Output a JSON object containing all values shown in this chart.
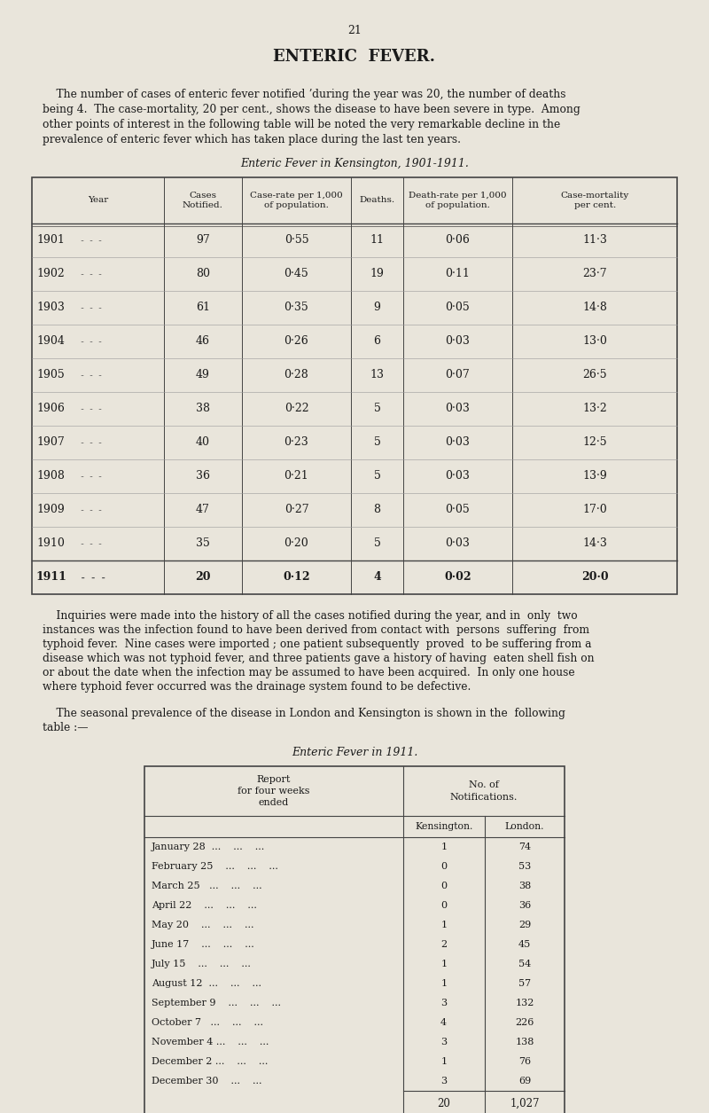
{
  "page_number": "21",
  "title": "ENTERIC  FEVER.",
  "bg_color": "#e9e5db",
  "para1_lines": [
    "    The number of cases of enteric fever notified ʼduring the year was 20, the number of deaths",
    "being 4.  The case-mortality, 20 per cent., shows the disease to have been severe in type.  Among",
    "other points of interest in the following table will be noted the very remarkable decline in the",
    "prevalence of enteric fever which has taken place during the last ten years."
  ],
  "table1_title": "Enteric Fever in Kensington, 1901-1911.",
  "table1_col_headers": [
    "Year",
    "Cases\nNotified.",
    "Case-rate per 1,000\nof population.",
    "Deaths.",
    "Death-rate per 1,000\nof population.",
    "Case-mortality\nper cent."
  ],
  "table1_data": [
    [
      "1901",
      " -  -  -",
      "97",
      "0·55",
      "11",
      "0·06",
      "11·3"
    ],
    [
      "1902",
      " -  -  -",
      "80",
      "0·45",
      "19",
      "0·11",
      "23·7"
    ],
    [
      "1903",
      " -  -  -",
      "61",
      "0·35",
      "9",
      "0·05",
      "14·8"
    ],
    [
      "1904",
      " -  -  -",
      "46",
      "0·26",
      "6",
      "0·03",
      "13·0"
    ],
    [
      "1905",
      " -  -  -",
      "49",
      "0·28",
      "13",
      "0·07",
      "26·5"
    ],
    [
      "1906",
      " -  -  -",
      "38",
      "0·22",
      "5",
      "0·03",
      "13·2"
    ],
    [
      "1907",
      " -  -  -",
      "40",
      "0·23",
      "5",
      "0·03",
      "12·5"
    ],
    [
      "1908",
      " -  -  -",
      "36",
      "0·21",
      "5",
      "0·03",
      "13·9"
    ],
    [
      "1909",
      " -  -  -",
      "47",
      "0·27",
      "8",
      "0·05",
      "17·0"
    ],
    [
      "1910",
      " -  -  -",
      "35",
      "0·20",
      "5",
      "0·03",
      "14·3"
    ],
    [
      "1911",
      " -  -  -",
      "20",
      "0·12",
      "4",
      "0·02",
      "20·0"
    ]
  ],
  "para2_lines": [
    "    Inquiries were made into the history of all the cases notified during the year, and in  only  two",
    "instances was the infection found to have been derived from contact with  persons  suffering  from",
    "typhoid fever.  Nine cases were imported ; one patient subsequently  proved  to be suffering from a",
    "disease which was not typhoid fever, and three patients gave a history of having  eaten shell fish on",
    "or about the date when the infection may be assumed to have been acquired.  In only one house",
    "where typhoid fever occurred was the drainage system found to be defective."
  ],
  "para3_lines": [
    "    The seasonal prevalence of the disease in London and Kensington is shown in the  following",
    "table :—"
  ],
  "table2_title": "Enteric Fever in 1911.",
  "table2_data": [
    [
      "January 28  ...    ...    ...",
      "1",
      "74"
    ],
    [
      "February 25    ...    ...    ...",
      "0",
      "53"
    ],
    [
      "March 25   ...    ...    ...",
      "0",
      "38"
    ],
    [
      "April 22    ...    ...    ...",
      "0",
      "36"
    ],
    [
      "May 20    ...    ...    ...",
      "1",
      "29"
    ],
    [
      "June 17    ...    ...    ...",
      "2",
      "45"
    ],
    [
      "July 15    ...    ...    ...",
      "1",
      "54"
    ],
    [
      "August 12  ...    ...    ...",
      "1",
      "57"
    ],
    [
      "September 9    ...    ...    ...",
      "3",
      "132"
    ],
    [
      "October 7   ...    ...    ...",
      "4",
      "226"
    ],
    [
      "November 4 ...    ...    ...",
      "3",
      "138"
    ],
    [
      "December 2 ...    ...    ...",
      "1",
      "76"
    ],
    [
      "December 30    ...    ...",
      "3",
      "69"
    ]
  ],
  "table2_totals": [
    "20",
    "1,027"
  ]
}
